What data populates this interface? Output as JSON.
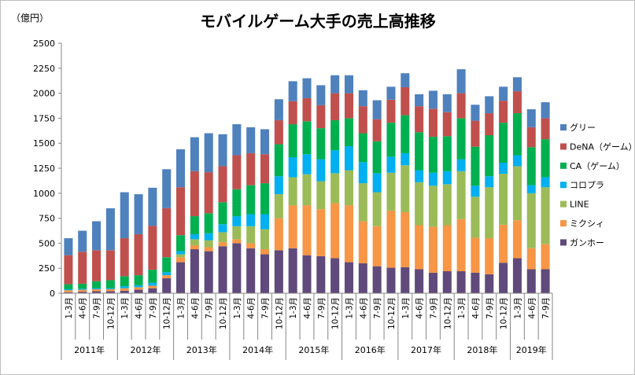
{
  "chart_data": {
    "type": "stacked-bar",
    "title": "モバイルゲーム大手の売上高推移",
    "ylabel": "（億円）",
    "ylim": [
      0,
      2500
    ],
    "yticks": [
      0,
      250,
      500,
      750,
      1000,
      1250,
      1500,
      1750,
      2000,
      2250,
      2500
    ],
    "ytick_labels": [
      "0",
      "250",
      "500",
      "750",
      "1000",
      "1250",
      "1500",
      "1750",
      "2000",
      "2250",
      "2500"
    ],
    "grid": false,
    "legend_position": "right",
    "categories": [
      "1-3月",
      "4-6月",
      "7-9月",
      "10-12月",
      "1-3月",
      "4-6月",
      "7-9月",
      "10-12月",
      "1-3月",
      "4-6月",
      "7-9月",
      "10-12月",
      "1-3月",
      "4-6月",
      "7-9月",
      "10-12月",
      "1-3月",
      "4-6月",
      "7-9月",
      "10-12月",
      "1-3月",
      "4-6月",
      "7-9月",
      "10-12月",
      "1-3月",
      "4-6月",
      "7-9月",
      "10-12月",
      "1-3月",
      "4-6月",
      "7-9月",
      "10-12月",
      "1-3月",
      "4-6月",
      "7-9月"
    ],
    "years": [
      {
        "label": "2011年",
        "span": 4
      },
      {
        "label": "2012年",
        "span": 4
      },
      {
        "label": "2013年",
        "span": 4
      },
      {
        "label": "2014年",
        "span": 4
      },
      {
        "label": "2015年",
        "span": 4
      },
      {
        "label": "2016年",
        "span": 4
      },
      {
        "label": "2017年",
        "span": 4
      },
      {
        "label": "2018年",
        "span": 4
      },
      {
        "label": "2019年",
        "span": 3
      }
    ],
    "series": [
      {
        "name": "ガンホー",
        "color": "#604a7b",
        "values": [
          10,
          15,
          20,
          20,
          25,
          35,
          50,
          150,
          310,
          440,
          420,
          470,
          500,
          450,
          390,
          430,
          450,
          380,
          370,
          350,
          310,
          300,
          270,
          255,
          260,
          240,
          205,
          220,
          220,
          205,
          190,
          305,
          350,
          240,
          240
        ]
      },
      {
        "name": "ミクシィ",
        "color": "#f79646",
        "values": [
          20,
          20,
          20,
          20,
          25,
          25,
          25,
          30,
          50,
          40,
          40,
          40,
          40,
          50,
          50,
          320,
          430,
          500,
          470,
          550,
          570,
          420,
          400,
          570,
          550,
          440,
          460,
          460,
          520,
          350,
          360,
          380,
          380,
          210,
          250
        ]
      },
      {
        "name": "LINE",
        "color": "#9bbb59",
        "values": [
          0,
          0,
          0,
          0,
          0,
          0,
          0,
          0,
          30,
          60,
          70,
          100,
          130,
          170,
          200,
          240,
          280,
          310,
          280,
          300,
          350,
          380,
          340,
          380,
          470,
          430,
          410,
          410,
          480,
          410,
          510,
          510,
          540,
          550,
          570
        ]
      },
      {
        "name": "コロプラ",
        "color": "#00b0f0",
        "values": [
          10,
          10,
          10,
          10,
          20,
          20,
          30,
          30,
          30,
          50,
          70,
          80,
          100,
          120,
          150,
          180,
          200,
          200,
          220,
          230,
          240,
          210,
          190,
          160,
          120,
          120,
          130,
          130,
          120,
          110,
          110,
          110,
          110,
          80,
          100
        ]
      },
      {
        "name": "CA（ゲーム）",
        "color": "#00b050",
        "values": [
          50,
          50,
          70,
          80,
          100,
          100,
          130,
          150,
          160,
          180,
          200,
          220,
          270,
          290,
          310,
          320,
          330,
          330,
          310,
          300,
          280,
          290,
          320,
          340,
          380,
          380,
          360,
          350,
          410,
          390,
          410,
          400,
          420,
          380,
          380
        ]
      },
      {
        "name": "DeNA（ゲーム）",
        "color": "#c0504d",
        "values": [
          290,
          320,
          310,
          300,
          380,
          410,
          440,
          490,
          480,
          450,
          410,
          360,
          340,
          320,
          290,
          240,
          230,
          230,
          230,
          270,
          250,
          270,
          220,
          230,
          280,
          260,
          280,
          240,
          250,
          260,
          220,
          220,
          220,
          200,
          210
        ]
      },
      {
        "name": "グリー",
        "color": "#4f81bd",
        "values": [
          170,
          210,
          290,
          420,
          460,
          400,
          380,
          390,
          380,
          340,
          390,
          320,
          310,
          260,
          250,
          210,
          200,
          200,
          200,
          180,
          180,
          160,
          190,
          130,
          140,
          120,
          180,
          180,
          240,
          160,
          170,
          140,
          140,
          180,
          160
        ]
      }
    ]
  }
}
